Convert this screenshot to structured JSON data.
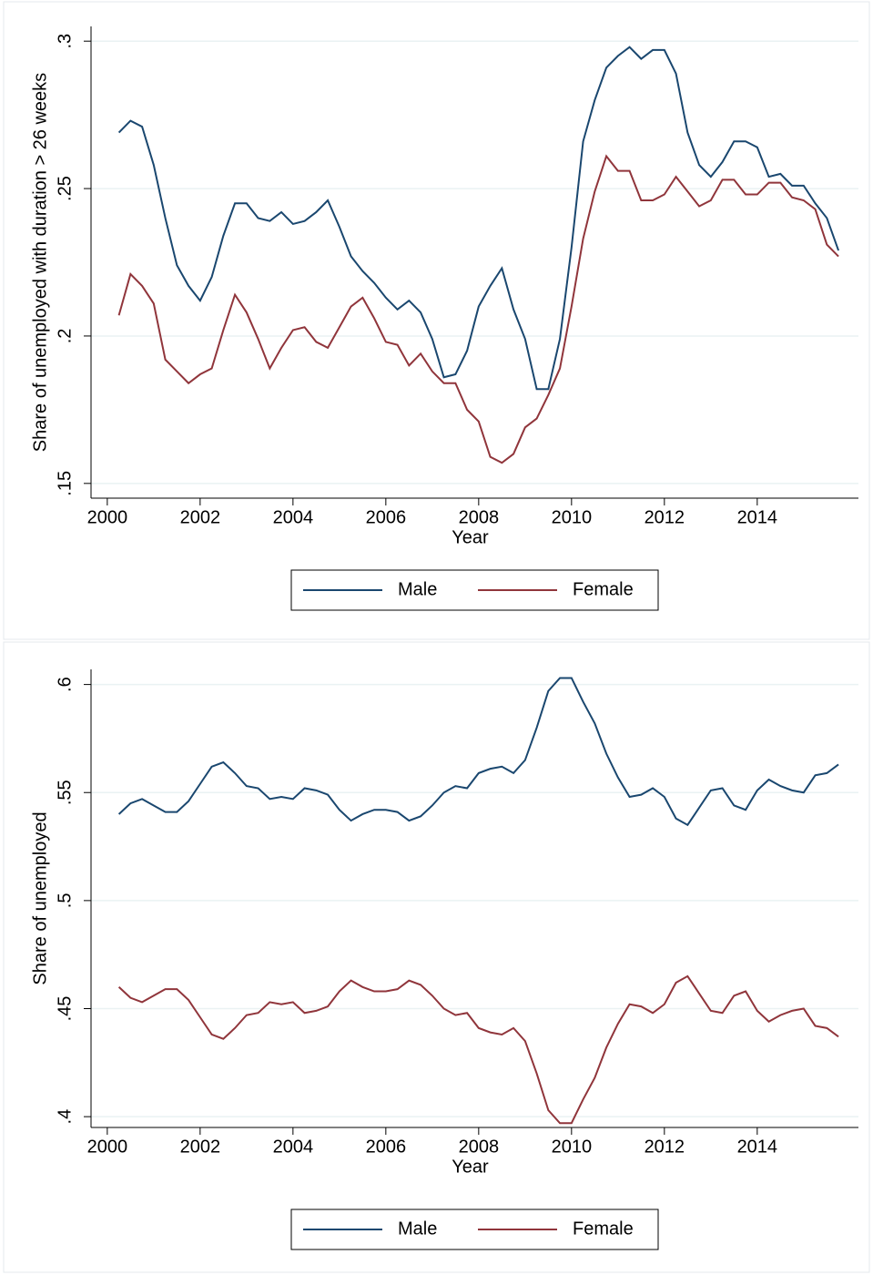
{
  "chart_data": [
    {
      "type": "line",
      "x": [
        2000.25,
        2000.5,
        2000.75,
        2001,
        2001.25,
        2001.5,
        2001.75,
        2002,
        2002.25,
        2002.5,
        2002.75,
        2003,
        2003.25,
        2003.5,
        2003.75,
        2004,
        2004.25,
        2004.5,
        2004.75,
        2005,
        2005.25,
        2005.5,
        2005.75,
        2006,
        2006.25,
        2006.5,
        2006.75,
        2007,
        2007.25,
        2007.5,
        2007.75,
        2008,
        2008.25,
        2008.5,
        2008.75,
        2009,
        2009.25,
        2009.5,
        2009.75,
        2010,
        2010.25,
        2010.5,
        2010.75,
        2011,
        2011.25,
        2011.5,
        2011.75,
        2012,
        2012.25,
        2012.5,
        2012.75,
        2013,
        2013.25,
        2013.5,
        2013.75,
        2014,
        2014.25,
        2014.5,
        2014.75,
        2015,
        2015.25,
        2015.5,
        2015.75
      ],
      "xlabel": "Year",
      "ylabel": "Share of unemployed with duration > 26 weeks",
      "xlim": [
        1999.65,
        2016.18
      ],
      "xticks": [
        2000,
        2002,
        2004,
        2006,
        2008,
        2010,
        2012,
        2014
      ],
      "ylim": [
        0.145,
        0.305
      ],
      "yticks": [
        {
          "value": 0.15,
          "label": ".15"
        },
        {
          "value": 0.2,
          "label": ".2"
        },
        {
          "value": 0.25,
          "label": ".25"
        },
        {
          "value": 0.3,
          "label": ".3"
        }
      ],
      "grid": true,
      "series": [
        {
          "name": "Male",
          "color": "#1a476f",
          "values": [
            0.269,
            0.273,
            0.271,
            0.258,
            0.24,
            0.224,
            0.217,
            0.212,
            0.22,
            0.234,
            0.245,
            0.245,
            0.24,
            0.239,
            0.242,
            0.238,
            0.239,
            0.242,
            0.246,
            0.237,
            0.227,
            0.222,
            0.218,
            0.213,
            0.209,
            0.212,
            0.208,
            0.199,
            0.186,
            0.187,
            0.195,
            0.21,
            0.217,
            0.223,
            0.209,
            0.199,
            0.182,
            0.182,
            0.199,
            0.23,
            0.266,
            0.28,
            0.291,
            0.295,
            0.298,
            0.294,
            0.297,
            0.297,
            0.289,
            0.269,
            0.258,
            0.254,
            0.259,
            0.266,
            0.266,
            0.264,
            0.254,
            0.255,
            0.251,
            0.251,
            0.245,
            0.24,
            0.229
          ]
        },
        {
          "name": "Female",
          "color": "#90353b",
          "values": [
            0.207,
            0.221,
            0.217,
            0.211,
            0.192,
            0.188,
            0.184,
            0.187,
            0.189,
            0.202,
            0.214,
            0.208,
            0.199,
            0.189,
            0.196,
            0.202,
            0.203,
            0.198,
            0.196,
            0.203,
            0.21,
            0.213,
            0.206,
            0.198,
            0.197,
            0.19,
            0.194,
            0.188,
            0.184,
            0.184,
            0.175,
            0.171,
            0.159,
            0.157,
            0.16,
            0.169,
            0.172,
            0.18,
            0.189,
            0.21,
            0.233,
            0.249,
            0.261,
            0.256,
            0.256,
            0.246,
            0.246,
            0.248,
            0.254,
            0.249,
            0.244,
            0.246,
            0.253,
            0.253,
            0.248,
            0.248,
            0.252,
            0.252,
            0.247,
            0.246,
            0.243,
            0.231,
            0.227
          ]
        }
      ]
    },
    {
      "type": "line",
      "x": [
        2000.25,
        2000.5,
        2000.75,
        2001,
        2001.25,
        2001.5,
        2001.75,
        2002,
        2002.25,
        2002.5,
        2002.75,
        2003,
        2003.25,
        2003.5,
        2003.75,
        2004,
        2004.25,
        2004.5,
        2004.75,
        2005,
        2005.25,
        2005.5,
        2005.75,
        2006,
        2006.25,
        2006.5,
        2006.75,
        2007,
        2007.25,
        2007.5,
        2007.75,
        2008,
        2008.25,
        2008.5,
        2008.75,
        2009,
        2009.25,
        2009.5,
        2009.75,
        2010,
        2010.25,
        2010.5,
        2010.75,
        2011,
        2011.25,
        2011.5,
        2011.75,
        2012,
        2012.25,
        2012.5,
        2012.75,
        2013,
        2013.25,
        2013.5,
        2013.75,
        2014,
        2014.25,
        2014.5,
        2014.75,
        2015,
        2015.25,
        2015.5,
        2015.75
      ],
      "xlabel": "Year",
      "ylabel": "Share of unemployed",
      "xlim": [
        1999.65,
        2016.18
      ],
      "xticks": [
        2000,
        2002,
        2004,
        2006,
        2008,
        2010,
        2012,
        2014
      ],
      "ylim": [
        0.395,
        0.607
      ],
      "yticks": [
        {
          "value": 0.4,
          "label": ".4"
        },
        {
          "value": 0.45,
          "label": ".45"
        },
        {
          "value": 0.5,
          "label": ".5"
        },
        {
          "value": 0.55,
          "label": ".55"
        },
        {
          "value": 0.6,
          "label": ".6"
        }
      ],
      "grid": true,
      "series": [
        {
          "name": "Male",
          "color": "#1a476f",
          "values": [
            0.54,
            0.545,
            0.547,
            0.544,
            0.541,
            0.541,
            0.546,
            0.554,
            0.562,
            0.564,
            0.559,
            0.553,
            0.552,
            0.547,
            0.548,
            0.547,
            0.552,
            0.551,
            0.549,
            0.542,
            0.537,
            0.54,
            0.542,
            0.542,
            0.541,
            0.537,
            0.539,
            0.544,
            0.55,
            0.553,
            0.552,
            0.559,
            0.561,
            0.562,
            0.559,
            0.565,
            0.58,
            0.597,
            0.603,
            0.603,
            0.592,
            0.582,
            0.568,
            0.557,
            0.548,
            0.549,
            0.552,
            0.548,
            0.538,
            0.535,
            0.543,
            0.551,
            0.552,
            0.544,
            0.542,
            0.551,
            0.556,
            0.553,
            0.551,
            0.55,
            0.558,
            0.559,
            0.563
          ]
        },
        {
          "name": "Female",
          "color": "#90353b",
          "values": [
            0.46,
            0.455,
            0.453,
            0.456,
            0.459,
            0.459,
            0.454,
            0.446,
            0.438,
            0.436,
            0.441,
            0.447,
            0.448,
            0.453,
            0.452,
            0.453,
            0.448,
            0.449,
            0.451,
            0.458,
            0.463,
            0.46,
            0.458,
            0.458,
            0.459,
            0.463,
            0.461,
            0.456,
            0.45,
            0.447,
            0.448,
            0.441,
            0.439,
            0.438,
            0.441,
            0.435,
            0.42,
            0.403,
            0.397,
            0.397,
            0.408,
            0.418,
            0.432,
            0.443,
            0.452,
            0.451,
            0.448,
            0.452,
            0.462,
            0.465,
            0.457,
            0.449,
            0.448,
            0.456,
            0.458,
            0.449,
            0.444,
            0.447,
            0.449,
            0.45,
            0.442,
            0.441,
            0.437
          ]
        }
      ]
    }
  ]
}
